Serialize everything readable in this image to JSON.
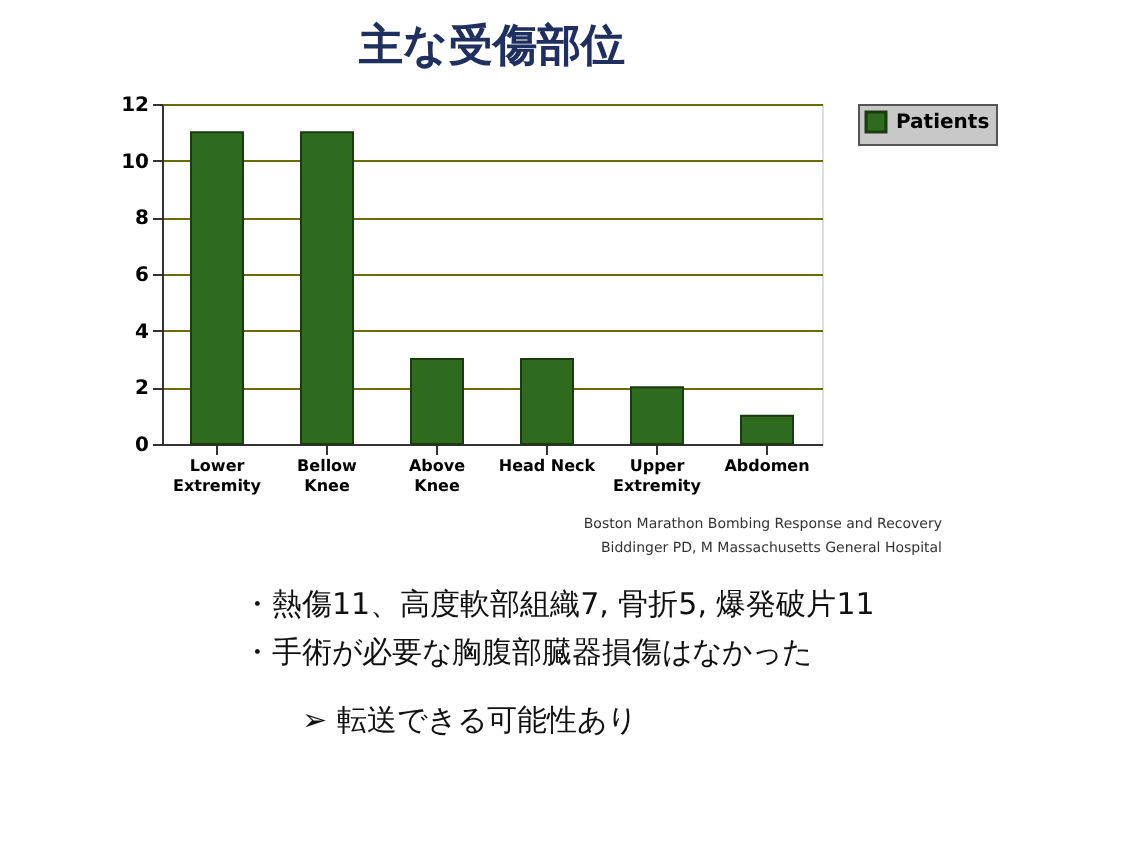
{
  "chart_data": {
    "type": "bar",
    "title": "主な受傷部位",
    "categories": [
      "Lower Extremity",
      "Bellow Knee",
      "Above Knee",
      "Head Neck",
      "Upper Extremity",
      "Abdomen"
    ],
    "series": [
      {
        "name": "Patients",
        "color": "#2e6b1e",
        "values": [
          11,
          11,
          3,
          3,
          2,
          1
        ]
      }
    ],
    "ylim": [
      0,
      12
    ],
    "yticks": [
      0,
      2,
      4,
      6,
      8,
      10,
      12
    ],
    "grid": "y",
    "legend": "right",
    "annotations": [
      "Boston Marathon Bombing Response and Recovery",
      "Biddinger PD, M    Massachusetts General Hospital",
      "・熱傷11、高度軟部組織7, 骨折5, 爆発破片11",
      "・手術が必要な胸腹部臓器損傷はなかった",
      "➢ 転送できる可能性あり"
    ]
  }
}
